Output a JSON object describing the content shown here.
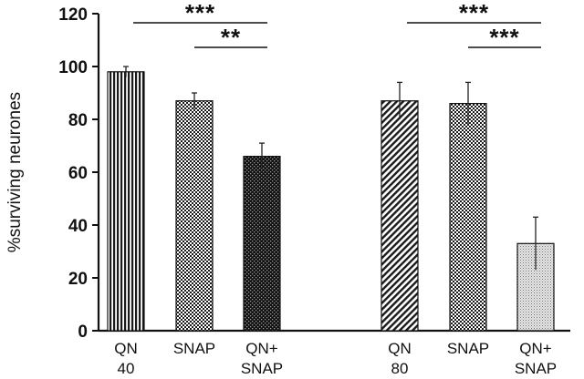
{
  "chart_data": {
    "type": "bar",
    "title": "",
    "xlabel": "",
    "ylabel": "%surviving neurones",
    "ylim": [
      0,
      120
    ],
    "yticks": [
      "0",
      "20",
      "40",
      "60",
      "80",
      "100",
      "120"
    ],
    "grid": false,
    "groups": [
      {
        "name": "40",
        "bars": [
          {
            "label": [
              "QN",
              "40"
            ],
            "value": 98,
            "error": 2,
            "pattern": "vertical-stripes"
          },
          {
            "label": [
              "SNAP"
            ],
            "value": 87,
            "error": 3,
            "pattern": "fine-check"
          },
          {
            "label": [
              "QN+",
              "SNAP"
            ],
            "value": 66,
            "error": 5,
            "pattern": "dark-check"
          }
        ],
        "significance": [
          {
            "from": 0,
            "to": 2,
            "text": "***"
          },
          {
            "from": 1,
            "to": 2,
            "text": "**"
          }
        ]
      },
      {
        "name": "80",
        "bars": [
          {
            "label": [
              "QN",
              "80"
            ],
            "value": 87,
            "error": 7,
            "pattern": "diagonal-stripes"
          },
          {
            "label": [
              "SNAP"
            ],
            "value": 86,
            "error": 8,
            "pattern": "fine-check"
          },
          {
            "label": [
              "QN+",
              "SNAP"
            ],
            "value": 33,
            "error": 10,
            "pattern": "light-dots"
          }
        ],
        "significance": [
          {
            "from": 0,
            "to": 2,
            "text": "***"
          },
          {
            "from": 1,
            "to": 2,
            "text": "***"
          }
        ]
      }
    ]
  }
}
